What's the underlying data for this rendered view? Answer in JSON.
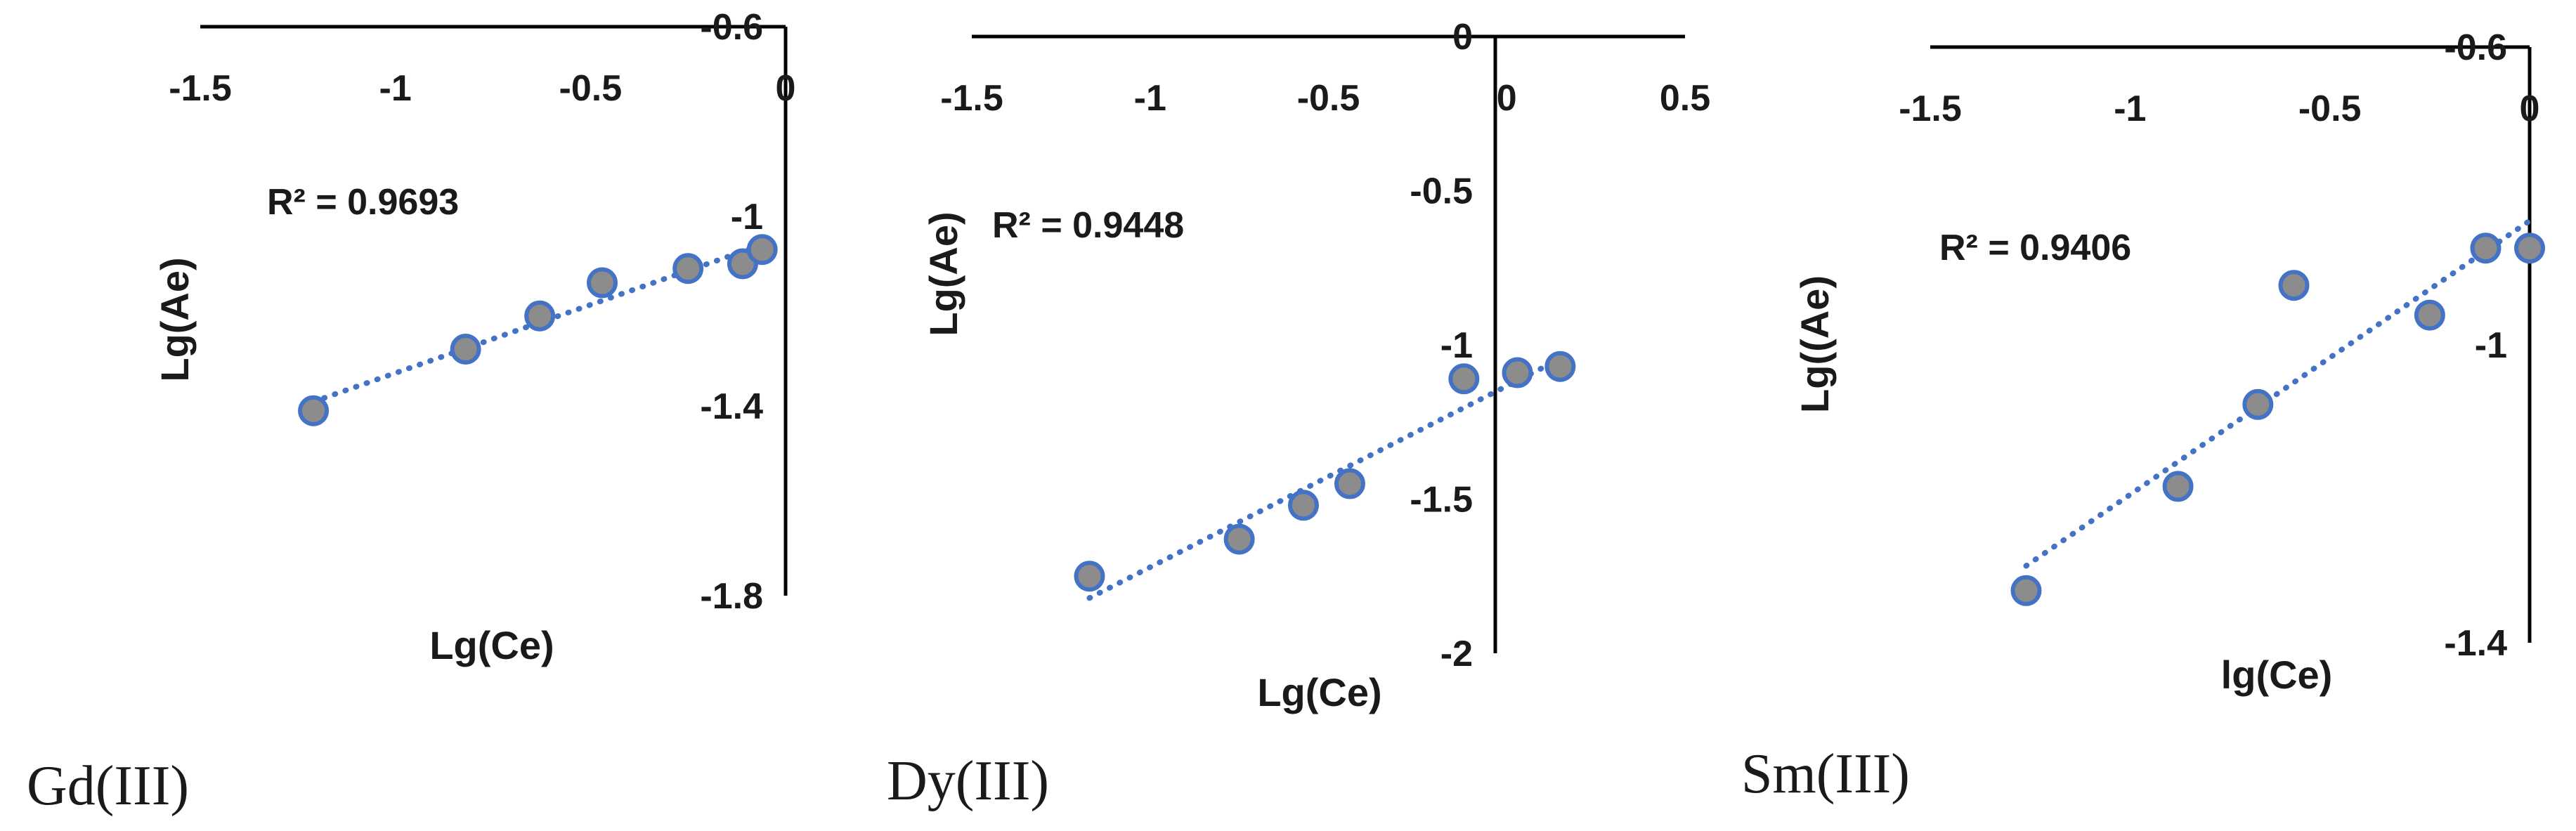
{
  "colors": {
    "marker_fill": "#8c8c8c",
    "marker_stroke": "#4472c4",
    "trendline": "#4472c4",
    "axis": "#000000"
  },
  "chart_data": [
    {
      "type": "scatter",
      "panel_label": "Gd(III)",
      "xlabel": "Lg(Ce)",
      "ylabel": "Lg(Ae)",
      "annotation": "R² = 0.9693",
      "xlim": [
        -1.5,
        0
      ],
      "ylim": [
        -1.8,
        -0.6
      ],
      "xticks": [
        -1.5,
        -1,
        -0.5,
        0
      ],
      "yticks": [
        -0.6,
        -1,
        -1.4,
        -1.8
      ],
      "xtick_labels": [
        "-1.5",
        "-1",
        "-0.5",
        "0"
      ],
      "ytick_labels": [
        "-0.6",
        "-1",
        "-1.4",
        "-1.8"
      ],
      "trendline": "linear-dotted",
      "series": [
        {
          "x": [
            -1.21,
            -0.82,
            -0.63,
            -0.47,
            -0.25,
            -0.11,
            -0.06
          ],
          "y": [
            -1.41,
            -1.28,
            -1.21,
            -1.14,
            -1.11,
            -1.1,
            -1.07
          ]
        }
      ]
    },
    {
      "type": "scatter",
      "panel_label": "Dy(III)",
      "xlabel": "Lg(Ce)",
      "ylabel": "Lg(Ae)",
      "annotation": "R² = 0.9448",
      "xlim": [
        -1.5,
        0.5
      ],
      "ylim": [
        -2,
        0
      ],
      "xticks": [
        -1.5,
        -1,
        -0.5,
        0,
        0.5
      ],
      "yticks": [
        0,
        -0.5,
        -1,
        -1.5,
        -2
      ],
      "xtick_labels": [
        "-1.5",
        "-1",
        "-0.5",
        "0",
        "0.5"
      ],
      "ytick_labels": [
        "0",
        "-0.5",
        "-1",
        "-1.5",
        "-2"
      ],
      "trendline": "linear-dotted",
      "series": [
        {
          "x": [
            -1.17,
            -0.75,
            -0.57,
            -0.44,
            -0.12,
            0.03,
            0.15
          ],
          "y": [
            -1.75,
            -1.63,
            -1.52,
            -1.45,
            -1.11,
            -1.09,
            -1.07
          ]
        }
      ]
    },
    {
      "type": "scatter",
      "panel_label": "Sm(III)",
      "xlabel": "lg(Ce)",
      "ylabel": "Lg((Ae)",
      "annotation": "R² = 0.9406",
      "xlim": [
        -1.5,
        0
      ],
      "ylim": [
        -1.4,
        -0.6
      ],
      "xticks": [
        -1.5,
        -1,
        -0.5,
        0
      ],
      "yticks": [
        -0.6,
        -1,
        -1.4
      ],
      "xtick_labels": [
        "-1.5",
        "-1",
        "-0.5",
        "0"
      ],
      "ytick_labels": [
        "-0.6",
        "-1",
        "-1.4"
      ],
      "trendline": "linear-dotted",
      "series": [
        {
          "x": [
            -1.26,
            -0.88,
            -0.68,
            -0.59,
            -0.25,
            -0.11,
            0.0
          ],
          "y": [
            -1.33,
            -1.19,
            -1.08,
            -0.92,
            -0.96,
            -0.87,
            -0.87
          ]
        }
      ]
    }
  ]
}
